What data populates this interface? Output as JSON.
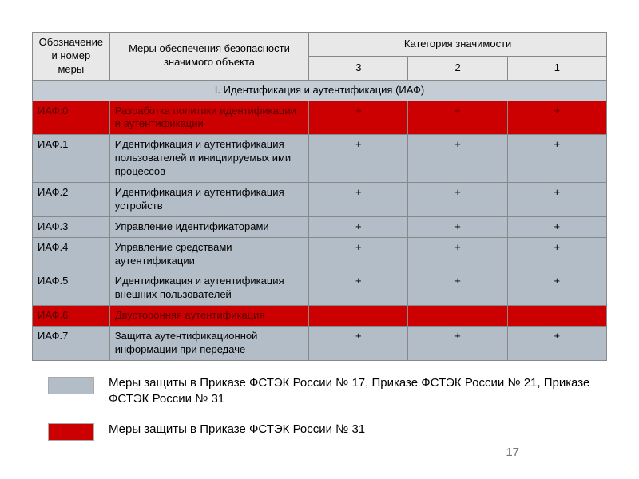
{
  "headers": {
    "col1": "Обозначение и номер меры",
    "col2": "Меры обеспечения безопасности значимого объекта",
    "col3": "Категория значимости",
    "cat3": "3",
    "cat2": "2",
    "cat1": "1"
  },
  "section_title": "I. Идентификация и аутентификация (ИАФ)",
  "rows": [
    {
      "code": "ИАФ.0",
      "desc": "Разработка политики идентификации и аутентификации",
      "c3": "+",
      "c2": "+",
      "c1": "+",
      "style": "red"
    },
    {
      "code": "ИАФ.1",
      "desc": "Идентификация и аутентификация пользователей и инициируемых ими процессов",
      "c3": "+",
      "c2": "+",
      "c1": "+",
      "style": "gray"
    },
    {
      "code": "ИАФ.2",
      "desc": "Идентификация и аутентификация устройств",
      "c3": "+",
      "c2": "+",
      "c1": "+",
      "style": "gray"
    },
    {
      "code": "ИАФ.3",
      "desc": "Управление идентификаторами",
      "c3": "+",
      "c2": "+",
      "c1": "+",
      "style": "gray"
    },
    {
      "code": "ИАФ.4",
      "desc": "Управление средствами аутентификации",
      "c3": "+",
      "c2": "+",
      "c1": "+",
      "style": "gray"
    },
    {
      "code": "ИАФ.5",
      "desc": "Идентификация и аутентификация внешних пользователей",
      "c3": "+",
      "c2": "+",
      "c1": "+",
      "style": "gray"
    },
    {
      "code": "ИАФ.6",
      "desc": "Двусторонняя аутентификация",
      "c3": "",
      "c2": "",
      "c1": "",
      "style": "red"
    },
    {
      "code": "ИАФ.7",
      "desc": "Защита аутентификационной информации при передаче",
      "c3": "+",
      "c2": "+",
      "c1": "+",
      "style": "gray"
    }
  ],
  "legend": {
    "gray_text": "Меры защиты в Приказе ФСТЭК России № 17, Приказе ФСТЭК России № 21, Приказе ФСТЭК России № 31",
    "red_text": "Меры защиты в Приказе ФСТЭК России № 31",
    "gray_color": "#b3bdc7",
    "red_color": "#cc0000"
  },
  "page_number": "17",
  "colors": {
    "header_bg": "#e8e8e8",
    "section_bg": "#c4cdd6",
    "row_gray": "#b3bdc7",
    "row_red": "#cc0000",
    "border": "#888888"
  }
}
